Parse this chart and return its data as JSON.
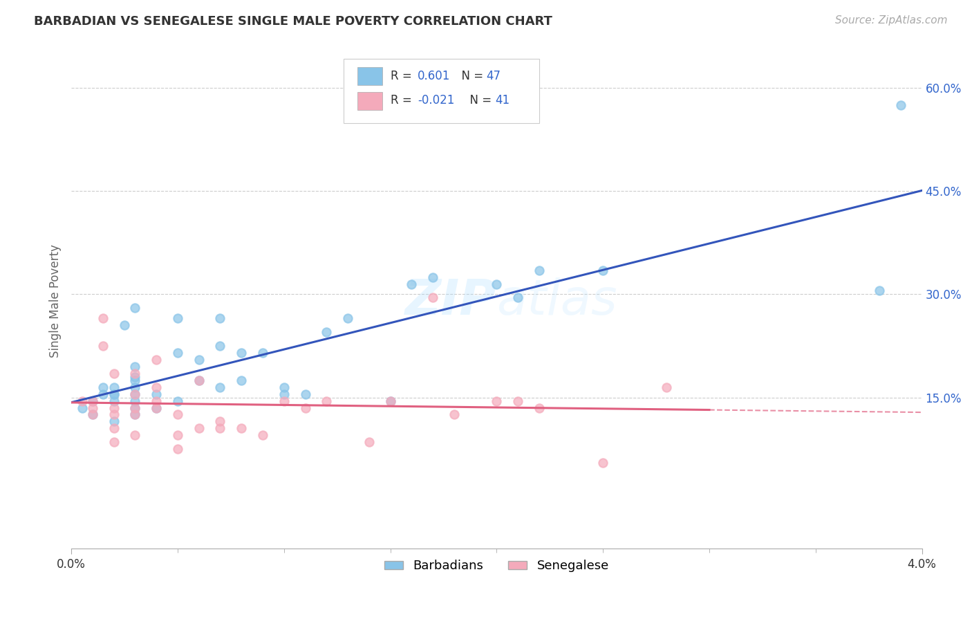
{
  "title": "BARBADIAN VS SENEGALESE SINGLE MALE POVERTY CORRELATION CHART",
  "source": "Source: ZipAtlas.com",
  "ylabel": "Single Male Poverty",
  "xlim": [
    0.0,
    0.04
  ],
  "ylim": [
    -0.07,
    0.65
  ],
  "yticks": [
    0.15,
    0.3,
    0.45,
    0.6
  ],
  "ytick_labels": [
    "15.0%",
    "30.0%",
    "45.0%",
    "60.0%"
  ],
  "xticks": [
    0.0,
    0.04
  ],
  "xtick_labels": [
    "0.0%",
    "4.0%"
  ],
  "background_color": "#ffffff",
  "grid_color": "#cccccc",
  "blue_color": "#89C4E8",
  "pink_color": "#F4AABB",
  "blue_line_color": "#3355BB",
  "pink_line_color": "#E06080",
  "blue_r": "0.601",
  "blue_n": "47",
  "pink_r": "-0.021",
  "pink_n": "41",
  "barbadian_x": [
    0.0005,
    0.001,
    0.001,
    0.0015,
    0.0015,
    0.002,
    0.002,
    0.002,
    0.002,
    0.002,
    0.0025,
    0.003,
    0.003,
    0.003,
    0.003,
    0.003,
    0.003,
    0.003,
    0.003,
    0.003,
    0.004,
    0.004,
    0.005,
    0.005,
    0.005,
    0.006,
    0.006,
    0.007,
    0.007,
    0.007,
    0.008,
    0.008,
    0.009,
    0.01,
    0.01,
    0.011,
    0.012,
    0.013,
    0.015,
    0.016,
    0.017,
    0.02,
    0.021,
    0.022,
    0.025,
    0.038,
    0.039
  ],
  "barbadian_y": [
    0.135,
    0.125,
    0.145,
    0.155,
    0.165,
    0.115,
    0.145,
    0.155,
    0.155,
    0.165,
    0.255,
    0.125,
    0.135,
    0.145,
    0.155,
    0.165,
    0.175,
    0.195,
    0.18,
    0.28,
    0.135,
    0.155,
    0.145,
    0.215,
    0.265,
    0.175,
    0.205,
    0.165,
    0.225,
    0.265,
    0.175,
    0.215,
    0.215,
    0.155,
    0.165,
    0.155,
    0.245,
    0.265,
    0.145,
    0.315,
    0.325,
    0.315,
    0.295,
    0.335,
    0.335,
    0.305,
    0.575
  ],
  "senegalese_x": [
    0.0005,
    0.001,
    0.001,
    0.001,
    0.0015,
    0.0015,
    0.002,
    0.002,
    0.002,
    0.002,
    0.002,
    0.003,
    0.003,
    0.003,
    0.003,
    0.003,
    0.004,
    0.004,
    0.004,
    0.004,
    0.005,
    0.005,
    0.005,
    0.006,
    0.006,
    0.007,
    0.007,
    0.008,
    0.009,
    0.01,
    0.011,
    0.012,
    0.014,
    0.015,
    0.017,
    0.018,
    0.02,
    0.021,
    0.022,
    0.025,
    0.028
  ],
  "senegalese_y": [
    0.145,
    0.125,
    0.135,
    0.145,
    0.225,
    0.265,
    0.085,
    0.105,
    0.125,
    0.135,
    0.185,
    0.095,
    0.125,
    0.135,
    0.155,
    0.185,
    0.135,
    0.145,
    0.165,
    0.205,
    0.075,
    0.095,
    0.125,
    0.105,
    0.175,
    0.105,
    0.115,
    0.105,
    0.095,
    0.145,
    0.135,
    0.145,
    0.085,
    0.145,
    0.295,
    0.125,
    0.145,
    0.145,
    0.135,
    0.055,
    0.165
  ]
}
